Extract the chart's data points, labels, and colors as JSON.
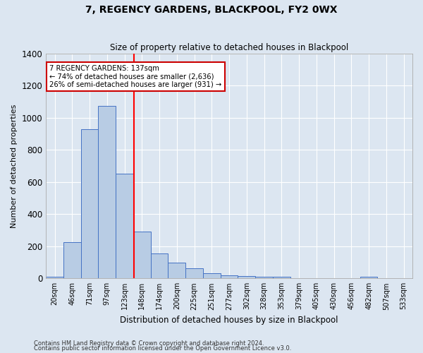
{
  "title": "7, REGENCY GARDENS, BLACKPOOL, FY2 0WX",
  "subtitle": "Size of property relative to detached houses in Blackpool",
  "xlabel": "Distribution of detached houses by size in Blackpool",
  "ylabel": "Number of detached properties",
  "bins": [
    "20sqm",
    "46sqm",
    "71sqm",
    "97sqm",
    "123sqm",
    "148sqm",
    "174sqm",
    "200sqm",
    "225sqm",
    "251sqm",
    "277sqm",
    "302sqm",
    "328sqm",
    "353sqm",
    "379sqm",
    "405sqm",
    "430sqm",
    "456sqm",
    "482sqm",
    "507sqm",
    "533sqm"
  ],
  "values": [
    10,
    225,
    930,
    1075,
    650,
    290,
    155,
    100,
    65,
    30,
    20,
    15,
    12,
    10,
    0,
    0,
    0,
    0,
    10,
    0,
    0
  ],
  "bar_color": "#b8cce4",
  "bar_edge_color": "#4472c4",
  "background_color": "#dce6f1",
  "plot_bg_color": "#dce6f1",
  "grid_color": "#ffffff",
  "annotation_text": "7 REGENCY GARDENS: 137sqm\n← 74% of detached houses are smaller (2,636)\n26% of semi-detached houses are larger (931) →",
  "annotation_box_color": "#ffffff",
  "annotation_edge_color": "#cc0000",
  "footer1": "Contains HM Land Registry data © Crown copyright and database right 2024.",
  "footer2": "Contains public sector information licensed under the Open Government Licence v3.0.",
  "ylim": [
    0,
    1400
  ],
  "yticks": [
    0,
    200,
    400,
    600,
    800,
    1000,
    1200,
    1400
  ]
}
